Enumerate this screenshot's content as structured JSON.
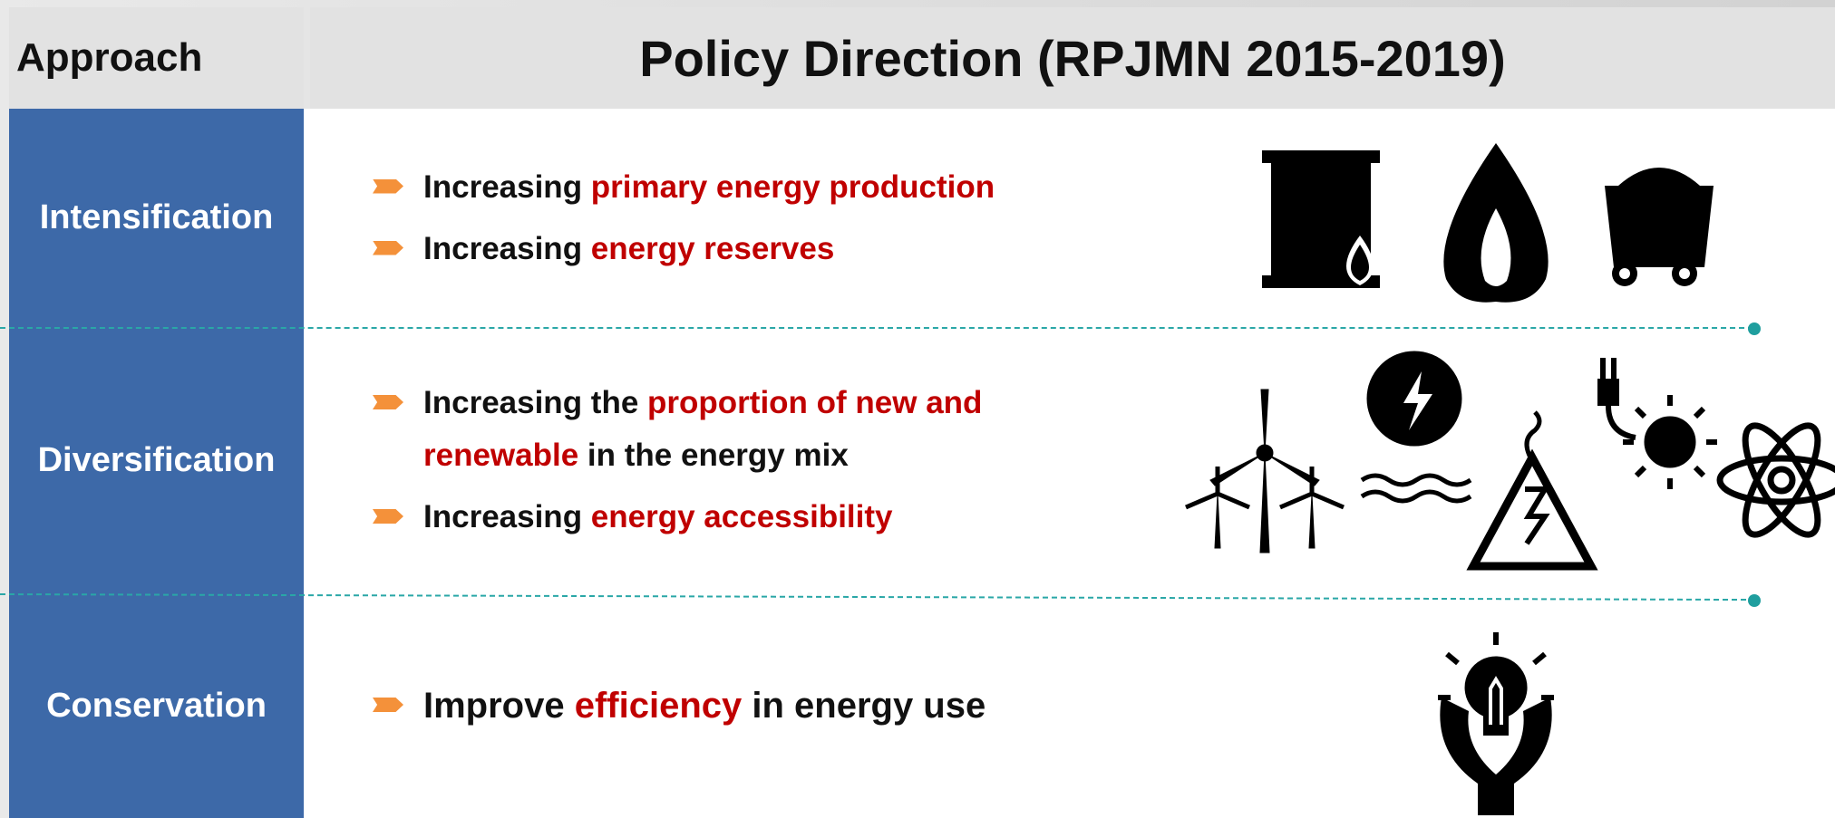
{
  "header": {
    "approach": "Approach",
    "policy": "Policy Direction (RPJMN 2015-2019)"
  },
  "rows": [
    {
      "approach": "Intensification",
      "bullets": [
        [
          {
            "text": "Increasing ",
            "color": "#111111"
          },
          {
            "text": "primary energy production",
            "color": "#c00000"
          }
        ],
        [
          {
            "text": "Increasing ",
            "color": "#111111"
          },
          {
            "text": "energy reserves",
            "color": "#c00000"
          }
        ]
      ]
    },
    {
      "approach": "Diversification",
      "bullets": [
        [
          {
            "text": "Increasing the ",
            "color": "#111111"
          },
          {
            "text": "proportion of new and renewable",
            "color": "#c00000"
          },
          {
            "text": " in the energy mix",
            "color": "#111111"
          }
        ],
        [
          {
            "text": "Increasing ",
            "color": "#111111"
          },
          {
            "text": "energy accessibility",
            "color": "#c00000"
          }
        ]
      ]
    },
    {
      "approach": "Conservation",
      "bullets": [
        [
          {
            "text": "Improve ",
            "color": "#111111"
          },
          {
            "text": "efficiency",
            "color": "#c00000"
          },
          {
            "text": " in energy use",
            "color": "#111111"
          }
        ]
      ]
    }
  ]
}
